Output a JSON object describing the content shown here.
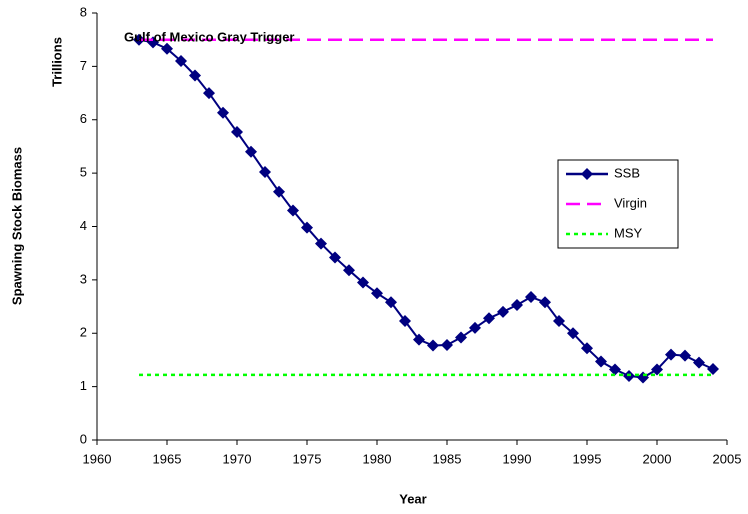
{
  "chart_data": {
    "type": "line",
    "annotation": "Gulf of Mexico Gray Trigger",
    "xlabel": "Year",
    "ylabel": "Spawning Stock Biomass",
    "yunit": "Trillions",
    "xlim": [
      1960,
      2005
    ],
    "xticks": [
      1960,
      1965,
      1970,
      1975,
      1980,
      1985,
      1990,
      1995,
      2000,
      2005
    ],
    "ylim": [
      0,
      8
    ],
    "yticks": [
      0,
      1,
      2,
      3,
      4,
      5,
      6,
      7,
      8
    ],
    "grid": false,
    "legend": "right",
    "series": [
      {
        "name": "SSB",
        "color": "#000080",
        "style": "solid",
        "marker": "diamond",
        "x": [
          1963,
          1964,
          1965,
          1966,
          1967,
          1968,
          1969,
          1970,
          1971,
          1972,
          1973,
          1974,
          1975,
          1976,
          1977,
          1978,
          1979,
          1980,
          1981,
          1982,
          1983,
          1984,
          1985,
          1986,
          1987,
          1988,
          1989,
          1990,
          1991,
          1992,
          1993,
          1994,
          1995,
          1996,
          1997,
          1998,
          1999,
          2000,
          2001,
          2002,
          2003,
          2004
        ],
        "values": [
          7.5,
          7.45,
          7.33,
          7.1,
          6.83,
          6.5,
          6.13,
          5.77,
          5.4,
          5.02,
          4.65,
          4.3,
          3.98,
          3.68,
          3.42,
          3.18,
          2.95,
          2.75,
          2.58,
          2.23,
          1.88,
          1.77,
          1.78,
          1.92,
          2.1,
          2.28,
          2.4,
          2.53,
          2.68,
          2.58,
          2.23,
          2.0,
          1.72,
          1.47,
          1.32,
          1.2,
          1.17,
          1.32,
          1.6,
          1.58,
          1.45,
          1.33
        ]
      },
      {
        "name": "Virgin",
        "color": "#ff00ff",
        "style": "dashed",
        "x": [
          1963,
          2004
        ],
        "values": [
          7.5,
          7.5
        ]
      },
      {
        "name": "MSY",
        "color": "#00ff00",
        "style": "dotted",
        "x": [
          1963,
          2004
        ],
        "values": [
          1.22,
          1.22
        ]
      }
    ]
  }
}
